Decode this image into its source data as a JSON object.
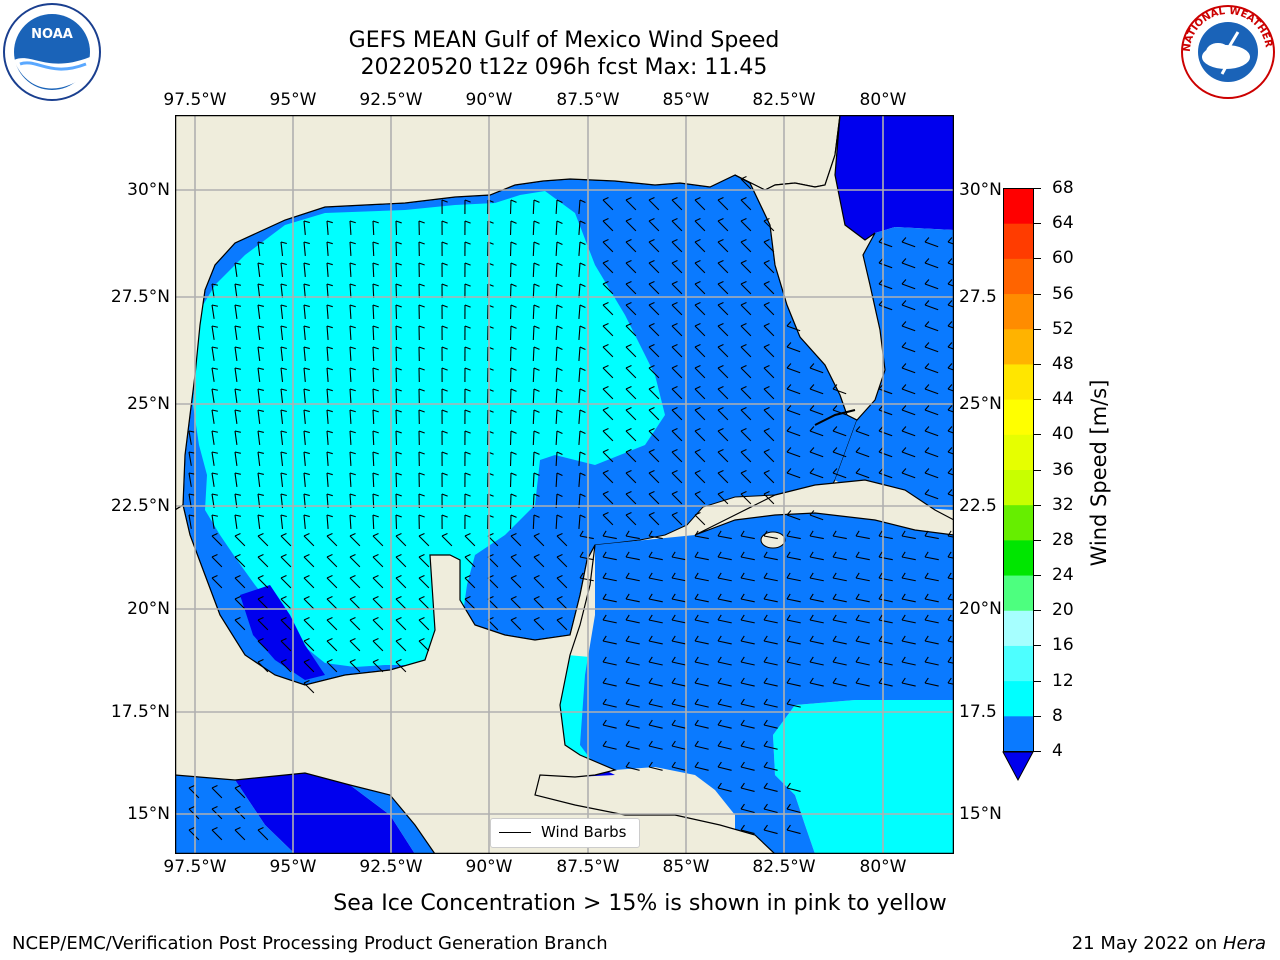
{
  "header": {
    "title_line1": "GEFS MEAN Gulf of Mexico Wind Speed",
    "title_line2": "20220520 t12z 096h fcst   Max: 11.45"
  },
  "logos": {
    "left": "NOAA",
    "right": "NATIONAL WEATHER SERVICE"
  },
  "map": {
    "lon_labels": [
      "97.5°W",
      "95°W",
      "92.5°W",
      "90°W",
      "87.5°W",
      "85°W",
      "82.5°W",
      "80°W"
    ],
    "lat_labels": [
      "30°N",
      "27.5°N",
      "25°N",
      "22.5°N",
      "20°N",
      "17.5°N",
      "15°N"
    ],
    "lat_labels_right": [
      "30°N",
      "27.5",
      "25°N",
      "22.5",
      "20°N",
      "17.5",
      "15°N"
    ],
    "legend_label": "Wind Barbs",
    "colors": {
      "land": "#efeddc",
      "band_4_8": "#0a7aff",
      "band_8_12": "#00ffff",
      "below_4": "#0000ee",
      "grid": "#b0b0b0"
    }
  },
  "colorbar": {
    "label": "Wind Speed [m/s]",
    "ticks": [
      "68",
      "64",
      "60",
      "56",
      "52",
      "48",
      "44",
      "40",
      "36",
      "32",
      "28",
      "24",
      "20",
      "16",
      "12",
      "8",
      "4"
    ],
    "colors": [
      "#0a7aff",
      "#00ffff",
      "#4dffff",
      "#a6ffff",
      "#4dff7f",
      "#00e600",
      "#66ee00",
      "#c8ff00",
      "#e6ff00",
      "#ffff00",
      "#ffe600",
      "#ffb300",
      "#ff8c00",
      "#ff6400",
      "#ff3c00",
      "#ff0000"
    ],
    "under_color": "#0000ee"
  },
  "notes": {
    "sea_ice": "Sea Ice Concentration > 15% is shown in pink to yellow",
    "footer_left": "NCEP/EMC/Verification Post Processing Product Generation Branch",
    "footer_date": "21 May 2022 on ",
    "footer_host": "Hera"
  }
}
